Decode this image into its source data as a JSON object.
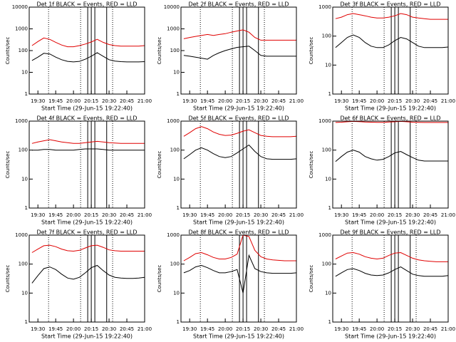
{
  "chart_data": [
    {
      "type": "line",
      "title": "Det 1f BLACK = Events, RED = LLD",
      "ylabel": "Counts/sec",
      "xlabel": "Start Time (29-Jun-15 19:22:40)",
      "log_y": true,
      "x": [
        "19:25",
        "19:30",
        "19:35",
        "19:40",
        "19:45",
        "19:50",
        "19:55",
        "20:00",
        "20:05",
        "20:10",
        "20:15",
        "20:20",
        "20:25",
        "20:30",
        "20:35",
        "20:40",
        "20:45",
        "20:50",
        "20:55",
        "21:00"
      ],
      "xlim": [
        "19:22:40",
        "21:00"
      ],
      "xticks": [
        "19:30",
        "19:45",
        "20:00",
        "20:15",
        "20:30",
        "20:45",
        "21:00"
      ],
      "ylim": [
        1,
        10000
      ],
      "yticks": [
        1,
        10,
        100,
        1000,
        10000
      ],
      "series": [
        {
          "color": "#000000",
          "values": [
            35,
            50,
            75,
            70,
            50,
            38,
            32,
            30,
            32,
            40,
            55,
            80,
            55,
            38,
            33,
            31,
            30,
            30,
            30,
            31
          ]
        },
        {
          "color": "#e00000",
          "values": [
            170,
            260,
            380,
            330,
            240,
            180,
            150,
            150,
            170,
            200,
            250,
            330,
            240,
            190,
            170,
            160,
            160,
            160,
            160,
            170
          ]
        }
      ]
    },
    {
      "type": "line",
      "title": "Det 2f BLACK = Events, RED = LLD",
      "ylabel": "Counts/sec",
      "xlabel": "Start Time (29-Jun-15 19:22:40)",
      "log_y": true,
      "x": [
        "19:25",
        "19:30",
        "19:35",
        "19:40",
        "19:45",
        "19:50",
        "19:55",
        "20:00",
        "20:05",
        "20:10",
        "20:15",
        "20:20",
        "20:25",
        "20:30",
        "20:35",
        "20:40",
        "20:45",
        "20:50",
        "20:55",
        "21:00"
      ],
      "xlim": [
        "19:22:40",
        "21:00"
      ],
      "xticks": [
        "19:30",
        "19:45",
        "20:00",
        "20:15",
        "20:30",
        "20:45",
        "21:00"
      ],
      "ylim": [
        1,
        10000
      ],
      "yticks": [
        1,
        10,
        100,
        1000,
        10000
      ],
      "series": [
        {
          "color": "#000000",
          "values": [
            60,
            55,
            50,
            45,
            40,
            60,
            80,
            100,
            120,
            140,
            150,
            160,
            100,
            60,
            55,
            55,
            55,
            55,
            55,
            55
          ]
        },
        {
          "color": "#e00000",
          "values": [
            350,
            400,
            450,
            500,
            550,
            500,
            550,
            600,
            700,
            800,
            900,
            700,
            400,
            300,
            300,
            300,
            300,
            300,
            300,
            300
          ]
        }
      ]
    },
    {
      "type": "line",
      "title": "Det 3f BLACK = Events, RED = LLD",
      "ylabel": "Counts/sec",
      "xlabel": "Start Time (29-Jun-15 19:22:40)",
      "log_y": true,
      "x": [
        "19:25",
        "19:30",
        "19:35",
        "19:40",
        "19:45",
        "19:50",
        "19:55",
        "20:00",
        "20:05",
        "20:10",
        "20:15",
        "20:20",
        "20:25",
        "20:30",
        "20:35",
        "20:40",
        "20:45",
        "20:50",
        "20:55",
        "21:00"
      ],
      "xlim": [
        "19:22:40",
        "21:00"
      ],
      "xticks": [
        "19:30",
        "19:45",
        "20:00",
        "20:15",
        "20:30",
        "20:45",
        "21:00"
      ],
      "ylim": [
        1,
        1000
      ],
      "yticks": [
        1,
        10,
        100,
        1000
      ],
      "series": [
        {
          "color": "#000000",
          "values": [
            40,
            60,
            90,
            110,
            90,
            60,
            45,
            40,
            40,
            50,
            70,
            90,
            80,
            60,
            45,
            40,
            40,
            40,
            40,
            42
          ]
        },
        {
          "color": "#e00000",
          "values": [
            400,
            450,
            550,
            600,
            550,
            500,
            450,
            420,
            420,
            450,
            500,
            600,
            550,
            450,
            420,
            400,
            380,
            380,
            380,
            380
          ]
        }
      ]
    },
    {
      "type": "line",
      "title": "Det 4f BLACK = Events, RED = LLD",
      "ylabel": "Counts/sec",
      "xlabel": "Start Time (29-Jun-15 19:22:40)",
      "log_y": true,
      "x": [
        "19:25",
        "19:30",
        "19:35",
        "19:40",
        "19:45",
        "19:50",
        "19:55",
        "20:00",
        "20:05",
        "20:10",
        "20:15",
        "20:20",
        "20:25",
        "20:30",
        "20:35",
        "20:40",
        "20:45",
        "20:50",
        "20:55",
        "21:00"
      ],
      "xlim": [
        "19:22:40",
        "21:00"
      ],
      "xticks": [
        "19:30",
        "19:45",
        "20:00",
        "20:15",
        "20:30",
        "20:45",
        "21:00"
      ],
      "ylim": [
        1,
        1000
      ],
      "yticks": [
        1,
        10,
        100,
        1000
      ],
      "series": [
        {
          "color": "#000000",
          "values": [
            100,
            100,
            105,
            105,
            100,
            100,
            100,
            100,
            105,
            110,
            110,
            110,
            105,
            100,
            100,
            100,
            100,
            100,
            100,
            100
          ]
        },
        {
          "color": "#e00000",
          "values": [
            170,
            190,
            210,
            230,
            210,
            190,
            180,
            170,
            170,
            180,
            190,
            200,
            190,
            180,
            175,
            170,
            170,
            170,
            170,
            170
          ]
        }
      ]
    },
    {
      "type": "line",
      "title": "Det 5f BLACK = Events, RED = LLD",
      "ylabel": "Counts/sec",
      "xlabel": "Start Time (29-Jun-15 19:22:40)",
      "log_y": true,
      "x": [
        "19:25",
        "19:30",
        "19:35",
        "19:40",
        "19:45",
        "19:50",
        "19:55",
        "20:00",
        "20:05",
        "20:10",
        "20:15",
        "20:20",
        "20:25",
        "20:30",
        "20:35",
        "20:40",
        "20:45",
        "20:50",
        "20:55",
        "21:00"
      ],
      "xlim": [
        "19:22:40",
        "21:00"
      ],
      "xticks": [
        "19:30",
        "19:45",
        "20:00",
        "20:15",
        "20:30",
        "20:45",
        "21:00"
      ],
      "ylim": [
        1,
        1000
      ],
      "yticks": [
        1,
        10,
        100,
        1000
      ],
      "series": [
        {
          "color": "#000000",
          "values": [
            50,
            70,
            100,
            120,
            100,
            75,
            60,
            55,
            60,
            80,
            110,
            150,
            90,
            60,
            50,
            48,
            48,
            48,
            48,
            50
          ]
        },
        {
          "color": "#e00000",
          "values": [
            300,
            400,
            550,
            650,
            550,
            420,
            350,
            320,
            330,
            380,
            450,
            500,
            400,
            320,
            300,
            290,
            290,
            290,
            290,
            300
          ]
        }
      ]
    },
    {
      "type": "line",
      "title": "Det 6f BLACK = Events, RED = LLD",
      "ylabel": "Counts/sec",
      "xlabel": "Start Time (29-Jun-15 19:22:40)",
      "log_y": true,
      "x": [
        "19:25",
        "19:30",
        "19:35",
        "19:40",
        "19:45",
        "19:50",
        "19:55",
        "20:00",
        "20:05",
        "20:10",
        "20:15",
        "20:20",
        "20:25",
        "20:30",
        "20:35",
        "20:40",
        "20:45",
        "20:50",
        "20:55",
        "21:00"
      ],
      "xlim": [
        "19:22:40",
        "21:00"
      ],
      "xticks": [
        "19:30",
        "19:45",
        "20:00",
        "20:15",
        "20:30",
        "20:45",
        "21:00"
      ],
      "ylim": [
        1,
        1000
      ],
      "yticks": [
        1,
        10,
        100,
        1000
      ],
      "series": [
        {
          "color": "#000000",
          "values": [
            40,
            60,
            85,
            100,
            85,
            60,
            50,
            45,
            48,
            60,
            80,
            90,
            70,
            55,
            45,
            42,
            42,
            42,
            42,
            42
          ]
        },
        {
          "color": "#e00000",
          "values": [
            900,
            920,
            950,
            980,
            960,
            930,
            920,
            910,
            910,
            930,
            950,
            980,
            950,
            920,
            910,
            900,
            900,
            900,
            900,
            900
          ]
        }
      ]
    },
    {
      "type": "line",
      "title": "Det 7f BLACK = Events, RED = LLD",
      "ylabel": "Counts/sec",
      "xlabel": "Start Time (29-Jun-15 19:22:40)",
      "log_y": true,
      "x": [
        "19:25",
        "19:30",
        "19:35",
        "19:40",
        "19:45",
        "19:50",
        "19:55",
        "20:00",
        "20:05",
        "20:10",
        "20:15",
        "20:20",
        "20:25",
        "20:30",
        "20:35",
        "20:40",
        "20:45",
        "20:50",
        "20:55",
        "21:00"
      ],
      "xlim": [
        "19:22:40",
        "21:00"
      ],
      "xticks": [
        "19:30",
        "19:45",
        "20:00",
        "20:15",
        "20:30",
        "20:45",
        "21:00"
      ],
      "ylim": [
        1,
        1000
      ],
      "yticks": [
        1,
        10,
        100,
        1000
      ],
      "series": [
        {
          "color": "#000000",
          "values": [
            22,
            40,
            70,
            80,
            65,
            45,
            33,
            30,
            35,
            50,
            75,
            90,
            60,
            42,
            35,
            33,
            32,
            32,
            33,
            35
          ]
        },
        {
          "color": "#e00000",
          "values": [
            250,
            330,
            430,
            450,
            400,
            330,
            290,
            280,
            300,
            360,
            430,
            450,
            380,
            310,
            290,
            280,
            280,
            280,
            280,
            280
          ]
        }
      ]
    },
    {
      "type": "line",
      "title": "Det 8f BLACK = Events, RED = LLD",
      "ylabel": "Counts/sec",
      "xlabel": "Start Time (29-Jun-15 19:22:40)",
      "log_y": true,
      "x": [
        "19:25",
        "19:30",
        "19:35",
        "19:40",
        "19:45",
        "19:50",
        "19:55",
        "20:00",
        "20:05",
        "20:10",
        "20:15",
        "20:20",
        "20:25",
        "20:30",
        "20:35",
        "20:40",
        "20:45",
        "20:50",
        "20:55",
        "21:00"
      ],
      "xlim": [
        "19:22:40",
        "21:00"
      ],
      "xticks": [
        "19:30",
        "19:45",
        "20:00",
        "20:15",
        "20:30",
        "20:45",
        "21:00"
      ],
      "ylim": [
        1,
        1000
      ],
      "yticks": [
        1,
        10,
        100,
        1000
      ],
      "series": [
        {
          "color": "#000000",
          "values": [
            50,
            60,
            80,
            90,
            75,
            60,
            50,
            50,
            55,
            65,
            10,
            200,
            70,
            55,
            50,
            48,
            48,
            48,
            48,
            50
          ]
        },
        {
          "color": "#e00000",
          "values": [
            130,
            170,
            230,
            250,
            210,
            170,
            150,
            150,
            170,
            220,
            1000,
            900,
            300,
            180,
            150,
            140,
            135,
            130,
            130,
            130
          ]
        }
      ]
    },
    {
      "type": "line",
      "title": "Det 9f BLACK = Events, RED = LLD",
      "ylabel": "Counts/sec",
      "xlabel": "Start Time (29-Jun-15 19:22:40)",
      "log_y": true,
      "x": [
        "19:25",
        "19:30",
        "19:35",
        "19:40",
        "19:45",
        "19:50",
        "19:55",
        "20:00",
        "20:05",
        "20:10",
        "20:15",
        "20:20",
        "20:25",
        "20:30",
        "20:35",
        "20:40",
        "20:45",
        "20:50",
        "20:55",
        "21:00"
      ],
      "xlim": [
        "19:22:40",
        "21:00"
      ],
      "xticks": [
        "19:30",
        "19:45",
        "20:00",
        "20:15",
        "20:30",
        "20:45",
        "21:00"
      ],
      "ylim": [
        1,
        1000
      ],
      "yticks": [
        1,
        10,
        100,
        1000
      ],
      "series": [
        {
          "color": "#000000",
          "values": [
            38,
            50,
            65,
            70,
            60,
            48,
            42,
            40,
            42,
            50,
            65,
            80,
            60,
            45,
            40,
            38,
            38,
            38,
            38,
            40
          ]
        },
        {
          "color": "#e00000",
          "values": [
            150,
            190,
            240,
            250,
            220,
            180,
            160,
            150,
            160,
            200,
            240,
            250,
            200,
            160,
            140,
            130,
            125,
            120,
            120,
            120
          ]
        }
      ]
    }
  ],
  "dotted_times": [
    "19:39",
    "20:06",
    "20:33"
  ],
  "solid_times": [
    "20:12",
    "20:15",
    "20:18",
    "20:28"
  ]
}
